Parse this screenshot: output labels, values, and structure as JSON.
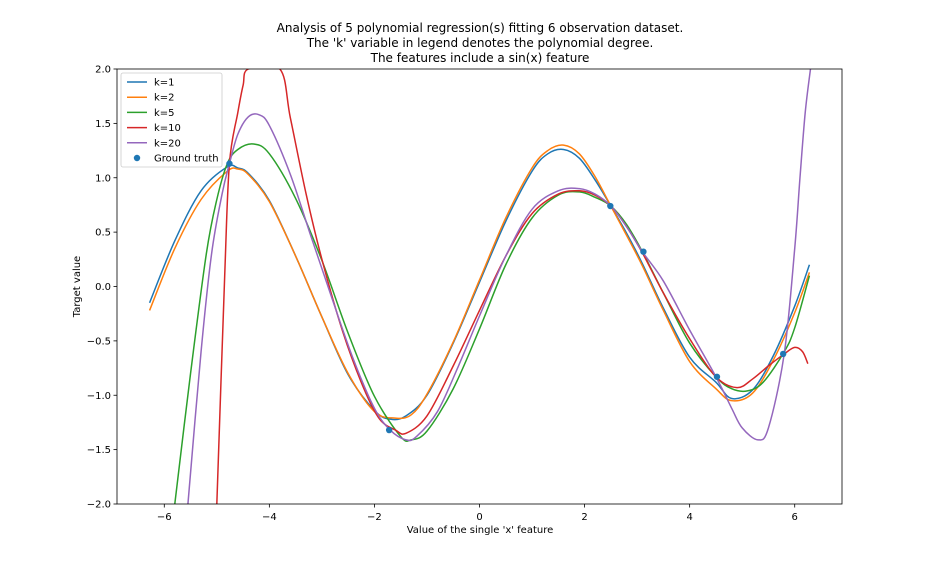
{
  "chart_data": {
    "type": "line",
    "title_lines": [
      "Analysis of 5 polynomial regression(s) fitting 6 observation dataset.",
      "The 'k' variable in legend denotes the polynomial degree.",
      "The features include a sin(x) feature"
    ],
    "xlabel": "Value of the single 'x' feature",
    "ylabel": "Target value",
    "xlim": [
      -6.9,
      6.9
    ],
    "ylim": [
      -2.0,
      2.0
    ],
    "x_ticks": [
      -6,
      -4,
      -2,
      0,
      2,
      4,
      6
    ],
    "x_tick_labels": [
      "−6",
      "−4",
      "−2",
      "0",
      "2",
      "4",
      "6"
    ],
    "y_ticks": [
      -2.0,
      -1.5,
      -1.0,
      -0.5,
      0.0,
      0.5,
      1.0,
      1.5,
      2.0
    ],
    "y_tick_labels": [
      "−2.0",
      "−1.5",
      "−1.0",
      "−0.5",
      "0.0",
      "0.5",
      "1.0",
      "1.5",
      "2.0"
    ],
    "grid": false,
    "legend_position": "top-left",
    "series": [
      {
        "name": "k=1",
        "color": "#1f77b4",
        "x": [
          -6.28,
          -5.8,
          -5.3,
          -4.8,
          -4.6,
          -4.4,
          -4.0,
          -3.5,
          -3.0,
          -2.5,
          -2.0,
          -1.7,
          -1.4,
          -1.0,
          -0.5,
          0.0,
          0.5,
          1.0,
          1.3,
          1.6,
          1.9,
          2.2,
          2.5,
          2.8,
          3.1,
          3.5,
          4.0,
          4.5,
          4.8,
          5.2,
          5.6,
          6.0,
          6.28
        ],
        "y": [
          -0.15,
          0.42,
          0.88,
          1.1,
          1.09,
          1.04,
          0.79,
          0.28,
          -0.28,
          -0.81,
          -1.14,
          -1.22,
          -1.19,
          -1.0,
          -0.52,
          0.04,
          0.6,
          1.06,
          1.22,
          1.26,
          1.18,
          0.98,
          0.74,
          0.49,
          0.21,
          -0.2,
          -0.65,
          -0.88,
          -1.03,
          -0.95,
          -0.63,
          -0.18,
          0.2
        ]
      },
      {
        "name": "k=2",
        "color": "#ff7f0e",
        "x": [
          -6.28,
          -5.8,
          -5.3,
          -4.8,
          -4.6,
          -4.4,
          -4.0,
          -3.5,
          -3.0,
          -2.5,
          -2.0,
          -1.6,
          -1.3,
          -1.0,
          -0.5,
          0.0,
          0.5,
          1.0,
          1.3,
          1.6,
          1.9,
          2.2,
          2.5,
          2.8,
          3.1,
          3.5,
          4.0,
          4.5,
          4.8,
          5.2,
          5.6,
          6.0,
          6.28
        ],
        "y": [
          -0.22,
          0.35,
          0.8,
          1.06,
          1.08,
          1.03,
          0.78,
          0.28,
          -0.28,
          -0.8,
          -1.15,
          -1.21,
          -1.18,
          -0.99,
          -0.51,
          0.06,
          0.63,
          1.09,
          1.25,
          1.3,
          1.22,
          1.01,
          0.74,
          0.47,
          0.19,
          -0.22,
          -0.69,
          -0.94,
          -1.05,
          -0.98,
          -0.67,
          -0.24,
          0.13
        ]
      },
      {
        "name": "k=5",
        "color": "#2ca02c",
        "x": [
          -5.8,
          -5.5,
          -5.2,
          -5.0,
          -4.8,
          -4.6,
          -4.3,
          -4.0,
          -3.5,
          -3.0,
          -2.5,
          -2.0,
          -1.5,
          -1.3,
          -1.0,
          -0.5,
          0.0,
          0.5,
          1.0,
          1.5,
          1.9,
          2.2,
          2.5,
          2.8,
          3.1,
          3.5,
          4.0,
          4.5,
          4.8,
          5.1,
          5.4,
          5.8,
          6.0,
          6.28
        ],
        "y": [
          -2.0,
          -0.8,
          0.3,
          0.8,
          1.13,
          1.26,
          1.31,
          1.22,
          0.81,
          0.24,
          -0.43,
          -1.01,
          -1.38,
          -1.41,
          -1.33,
          -0.94,
          -0.39,
          0.2,
          0.63,
          0.84,
          0.87,
          0.82,
          0.74,
          0.57,
          0.32,
          -0.06,
          -0.52,
          -0.83,
          -0.94,
          -0.96,
          -0.88,
          -0.6,
          -0.38,
          0.1
        ]
      },
      {
        "name": "k=10",
        "color": "#d62728",
        "x": [
          -5.0,
          -4.85,
          -4.76,
          -4.6,
          -4.5,
          -4.4,
          -3.8,
          -3.6,
          -3.3,
          -3.0,
          -2.6,
          -2.2,
          -1.9,
          -1.6,
          -1.4,
          -1.0,
          -0.5,
          0.0,
          0.5,
          1.0,
          1.5,
          1.9,
          2.2,
          2.5,
          2.8,
          3.1,
          3.5,
          4.0,
          4.5,
          4.9,
          5.2,
          5.5,
          5.8,
          6.0,
          6.15,
          6.25
        ],
        "y": [
          -2.0,
          0.1,
          1.13,
          1.6,
          1.85,
          2.0,
          2.0,
          1.55,
          0.85,
          0.25,
          -0.42,
          -0.94,
          -1.22,
          -1.32,
          -1.35,
          -1.19,
          -0.73,
          -0.22,
          0.28,
          0.67,
          0.85,
          0.88,
          0.84,
          0.74,
          0.55,
          0.31,
          -0.06,
          -0.48,
          -0.83,
          -0.93,
          -0.85,
          -0.73,
          -0.62,
          -0.56,
          -0.6,
          -0.71
        ]
      },
      {
        "name": "k=20",
        "color": "#9467bd",
        "x": [
          -5.55,
          -5.3,
          -5.1,
          -4.9,
          -4.76,
          -4.6,
          -4.4,
          -4.2,
          -4.0,
          -3.6,
          -3.2,
          -2.8,
          -2.4,
          -2.0,
          -1.7,
          -1.4,
          -1.2,
          -0.8,
          -0.4,
          0.0,
          0.5,
          1.0,
          1.5,
          1.9,
          2.2,
          2.5,
          2.8,
          3.1,
          3.5,
          4.0,
          4.5,
          4.8,
          5.0,
          5.3,
          5.5,
          5.8,
          6.0,
          6.1,
          6.2,
          6.3
        ],
        "y": [
          -2.0,
          -0.6,
          0.3,
          0.85,
          1.13,
          1.4,
          1.56,
          1.58,
          1.48,
          1.03,
          0.45,
          -0.12,
          -0.67,
          -1.12,
          -1.32,
          -1.41,
          -1.38,
          -1.15,
          -0.73,
          -0.27,
          0.28,
          0.71,
          0.88,
          0.9,
          0.85,
          0.74,
          0.55,
          0.32,
          0.05,
          -0.4,
          -0.83,
          -1.12,
          -1.3,
          -1.41,
          -1.3,
          -0.62,
          0.35,
          1.0,
          1.6,
          2.0
        ]
      }
    ],
    "ground_truth": {
      "name": "Ground truth",
      "color": "#1f77b4",
      "x": [
        -4.76,
        -1.72,
        2.49,
        3.12,
        4.52,
        5.78
      ],
      "y": [
        1.13,
        -1.32,
        0.74,
        0.32,
        -0.83,
        -0.62
      ]
    }
  }
}
